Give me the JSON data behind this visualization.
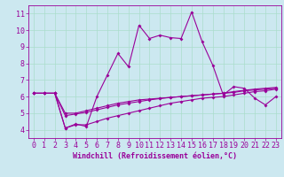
{
  "xlabel": "Windchill (Refroidissement éolien,°C)",
  "background_color": "#cce8f0",
  "grid_color": "#aaddcc",
  "line_color": "#990099",
  "xlim": [
    -0.5,
    23.5
  ],
  "ylim": [
    3.5,
    11.5
  ],
  "yticks": [
    4,
    5,
    6,
    7,
    8,
    9,
    10,
    11
  ],
  "xticks": [
    0,
    1,
    2,
    3,
    4,
    5,
    6,
    7,
    8,
    9,
    10,
    11,
    12,
    13,
    14,
    15,
    16,
    17,
    18,
    19,
    20,
    21,
    22,
    23
  ],
  "line1_x": [
    0,
    1,
    2,
    3,
    4,
    5,
    6,
    7,
    8,
    9,
    10,
    11,
    12,
    13,
    14,
    15,
    16,
    17,
    18,
    19,
    20,
    21,
    22,
    23
  ],
  "line1_y": [
    6.2,
    6.2,
    6.2,
    4.1,
    4.35,
    4.2,
    6.0,
    7.3,
    8.6,
    7.8,
    10.3,
    9.5,
    9.7,
    9.55,
    9.5,
    11.1,
    9.3,
    7.9,
    6.1,
    6.6,
    6.5,
    5.9,
    5.5,
    6.0
  ],
  "line2_x": [
    0,
    1,
    2,
    3,
    4,
    5,
    6,
    7,
    8,
    9,
    10,
    11,
    12,
    13,
    14,
    15,
    16,
    17,
    18,
    19,
    20,
    21,
    22,
    23
  ],
  "line2_y": [
    6.2,
    6.2,
    6.2,
    5.0,
    5.0,
    5.15,
    5.3,
    5.45,
    5.6,
    5.7,
    5.8,
    5.85,
    5.9,
    5.95,
    6.0,
    6.05,
    6.1,
    6.15,
    6.2,
    6.25,
    6.35,
    6.4,
    6.45,
    6.5
  ],
  "line3_x": [
    0,
    1,
    2,
    3,
    4,
    5,
    6,
    7,
    8,
    9,
    10,
    11,
    12,
    13,
    14,
    15,
    16,
    17,
    18,
    19,
    20,
    21,
    22,
    23
  ],
  "line3_y": [
    6.2,
    6.2,
    6.2,
    4.85,
    4.95,
    5.05,
    5.2,
    5.35,
    5.5,
    5.6,
    5.7,
    5.8,
    5.88,
    5.95,
    6.0,
    6.05,
    6.1,
    6.15,
    6.2,
    6.3,
    6.38,
    6.45,
    6.5,
    6.55
  ],
  "line4_x": [
    0,
    1,
    2,
    3,
    4,
    5,
    6,
    7,
    8,
    9,
    10,
    11,
    12,
    13,
    14,
    15,
    16,
    17,
    18,
    19,
    20,
    21,
    22,
    23
  ],
  "line4_y": [
    6.2,
    6.2,
    6.2,
    4.1,
    4.3,
    4.3,
    4.5,
    4.7,
    4.85,
    5.0,
    5.15,
    5.3,
    5.45,
    5.6,
    5.7,
    5.8,
    5.9,
    5.95,
    6.0,
    6.1,
    6.2,
    6.3,
    6.35,
    6.45
  ],
  "xlabel_fontsize": 6,
  "tick_fontsize": 6
}
